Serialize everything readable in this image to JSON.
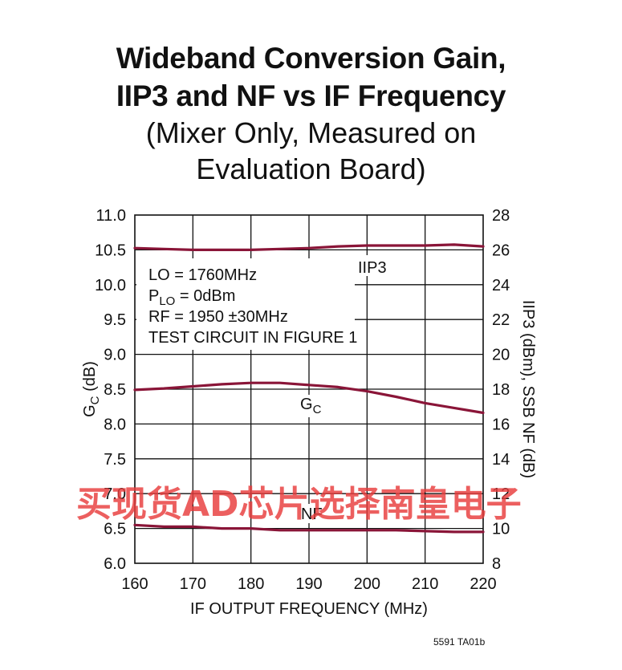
{
  "title": {
    "line1": "Wideband Conversion Gain,",
    "line2": "IIP3 and NF vs IF Frequency",
    "line3": "(Mixer Only, Measured on",
    "line4": "Evaluation Board)"
  },
  "watermark": "买现货AD芯片选择南皇电子",
  "figure_ref": "5591 TA01b",
  "colors": {
    "series": "#8a1538",
    "grid": "#111111"
  },
  "chart_data": {
    "type": "line",
    "xlabel": "IF OUTPUT FREQUENCY (MHz)",
    "ylabel_left_main": "G",
    "ylabel_left_sub": "C",
    "ylabel_left_unit": " (dB)",
    "ylabel_right": "IIP3 (dBm), SSB NF (dB)",
    "xlim": [
      160,
      220
    ],
    "ylim_left": [
      6.0,
      11.0
    ],
    "ylim_right": [
      8,
      28
    ],
    "x_ticks": [
      "160",
      "170",
      "180",
      "190",
      "200",
      "210",
      "220"
    ],
    "y_left_ticks": [
      "6.0",
      "6.5",
      "7.0",
      "7.5",
      "8.0",
      "8.5",
      "9.0",
      "9.5",
      "10.0",
      "10.5",
      "11.0"
    ],
    "y_right_ticks": [
      "8",
      "10",
      "12",
      "14",
      "16",
      "18",
      "20",
      "22",
      "24",
      "26",
      "28"
    ],
    "grid": true,
    "annotation": {
      "lo": "LO = 1760MHz",
      "plo_main": "P",
      "plo_sub": "LO",
      "plo_rest": " = 0dBm",
      "rf": "RF = 1950 ±30MHz",
      "circuit": "TEST CIRCUIT IN FIGURE 1"
    },
    "series": [
      {
        "label": "IIP3",
        "label_main": "IIP3",
        "label_sub": "",
        "axis": "right",
        "x": [
          160,
          165,
          170,
          175,
          180,
          185,
          190,
          195,
          200,
          205,
          210,
          215,
          220
        ],
        "y": [
          26.1,
          26.05,
          26.0,
          26.0,
          26.0,
          26.05,
          26.1,
          26.2,
          26.25,
          26.25,
          26.25,
          26.3,
          26.2
        ]
      },
      {
        "label": "GC",
        "label_main": "G",
        "label_sub": "C",
        "axis": "left",
        "x": [
          160,
          165,
          170,
          175,
          180,
          185,
          190,
          195,
          200,
          205,
          210,
          215,
          220
        ],
        "y": [
          8.49,
          8.51,
          8.54,
          8.57,
          8.59,
          8.59,
          8.56,
          8.53,
          8.47,
          8.39,
          8.3,
          8.23,
          8.16
        ]
      },
      {
        "label": "NF",
        "label_main": "NF",
        "label_sub": "",
        "axis": "right",
        "x": [
          160,
          165,
          170,
          175,
          180,
          185,
          190,
          195,
          200,
          205,
          210,
          215,
          220
        ],
        "y": [
          10.2,
          10.1,
          10.1,
          10.0,
          10.0,
          9.9,
          9.9,
          9.9,
          9.9,
          9.9,
          9.85,
          9.8,
          9.8
        ]
      }
    ]
  }
}
